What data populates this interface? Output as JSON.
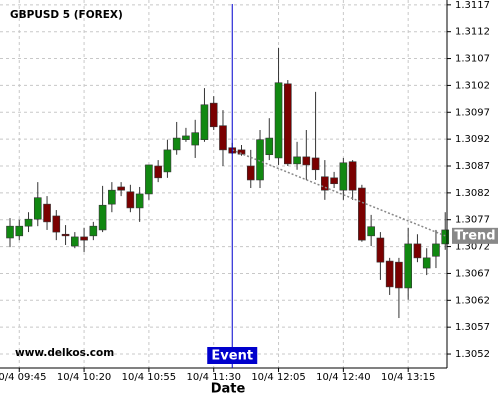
{
  "chart_data": {
    "type": "candlestick",
    "title": "GBPUSD 5 (FOREX)",
    "x_label": "Date",
    "watermark": "www.delkos.com",
    "categories": [
      null,
      "10/4 09:45",
      null,
      null,
      null,
      null,
      null,
      null,
      "10/4 10:20",
      null,
      null,
      null,
      null,
      null,
      null,
      "10/4 10:55",
      null,
      null,
      null,
      null,
      null,
      null,
      "10/4 11:30",
      null,
      null,
      null,
      null,
      null,
      null,
      "10/4 12:05",
      null,
      null,
      null,
      null,
      null,
      null,
      "10/4 12:40",
      null,
      null,
      null,
      null,
      null,
      null,
      "10/4 13:15",
      null,
      null,
      null,
      null
    ],
    "open": [
      1.30736,
      1.3074,
      1.30758,
      1.30771,
      1.30799,
      1.30777,
      1.30743,
      1.30721,
      1.30738,
      1.3074,
      1.30751,
      1.30799,
      1.30831,
      1.30822,
      1.30792,
      1.30818,
      1.3087,
      1.30859,
      1.309,
      1.30919,
      1.30909,
      1.30919,
      1.30987,
      1.30945,
      1.30904,
      1.309,
      1.3087,
      1.30844,
      1.30891,
      1.30885,
      1.31023,
      1.30874,
      1.30887,
      1.30885,
      1.3085,
      1.30848,
      1.30825,
      1.30878,
      1.30829,
      1.3074,
      1.30736,
      1.30693,
      1.30691,
      1.30643,
      1.30725,
      1.3068,
      1.30702,
      1.30725
    ],
    "high": [
      1.30773,
      1.3077,
      1.30784,
      1.3084,
      1.30814,
      1.30788,
      1.3076,
      1.30747,
      1.30755,
      1.30766,
      1.30833,
      1.3084,
      1.3084,
      1.30835,
      1.30831,
      1.30872,
      1.30881,
      1.30919,
      1.30952,
      1.30941,
      1.30956,
      1.31015,
      1.31,
      1.30974,
      1.30913,
      1.30909,
      1.309,
      1.30937,
      1.30959,
      1.3109,
      1.3103,
      1.30915,
      1.30937,
      1.31008,
      1.30881,
      1.30859,
      1.30885,
      1.30881,
      1.30835,
      1.30779,
      1.30747,
      1.30699,
      1.30699,
      1.30755,
      1.30743,
      1.30717,
      1.30751,
      1.30784
    ],
    "low": [
      1.30719,
      1.30732,
      1.30747,
      1.30758,
      1.30751,
      1.30732,
      1.30723,
      1.30717,
      1.3071,
      1.30732,
      1.30747,
      1.30784,
      1.30814,
      1.30784,
      1.30766,
      1.30807,
      1.3084,
      1.30848,
      1.30891,
      1.30915,
      1.30885,
      1.30915,
      1.30937,
      1.3087,
      1.30892,
      1.30889,
      1.30829,
      1.30829,
      1.30881,
      1.30872,
      1.3087,
      1.30863,
      1.30844,
      1.30844,
      1.30807,
      1.30829,
      1.30807,
      1.30807,
      1.30729,
      1.30721,
      1.30658,
      1.3063,
      1.30587,
      1.30621,
      1.30691,
      1.30667,
      1.3068,
      1.30714
    ],
    "close": [
      1.30758,
      1.30758,
      1.30771,
      1.30811,
      1.30766,
      1.30747,
      1.3074,
      1.30738,
      1.30732,
      1.30758,
      1.30797,
      1.30825,
      1.30825,
      1.30792,
      1.30818,
      1.30872,
      1.30848,
      1.309,
      1.30922,
      1.30926,
      1.30932,
      1.30984,
      1.30943,
      1.309,
      1.30894,
      1.30892,
      1.30844,
      1.30919,
      1.30922,
      1.31025,
      1.30874,
      1.30887,
      1.30872,
      1.30863,
      1.30825,
      1.30837,
      1.30876,
      1.30825,
      1.30732,
      1.30757,
      1.30691,
      1.30645,
      1.30643,
      1.30725,
      1.30699,
      1.30699,
      1.30725,
      1.30751
    ],
    "up_color": "#118811",
    "down_color": "#7a0000",
    "ylim": [
      1.30494,
      1.31179
    ],
    "yticks": [
      1.3052,
      1.3057,
      1.3062,
      1.3067,
      1.3072,
      1.3077,
      1.3082,
      1.3087,
      1.3092,
      1.3097,
      1.3102,
      1.3107,
      1.3112,
      1.3117
    ],
    "grid": true,
    "event": {
      "label": "Event",
      "index": 24,
      "color": "#0000cc"
    },
    "trend": {
      "label": "Trend",
      "from": 24,
      "to": 47,
      "values": [
        1.309,
        1.3074
      ],
      "color": "#888888"
    }
  }
}
